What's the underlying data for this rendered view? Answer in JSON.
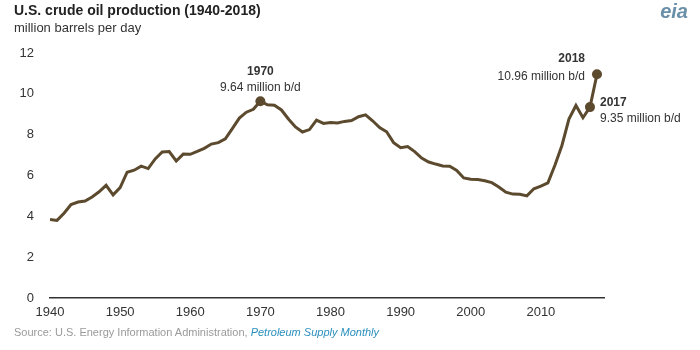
{
  "chart_data": {
    "type": "line",
    "title": "U.S. crude oil production (1940-2018)",
    "subtitle": "million barrels per day",
    "x": [
      1940,
      1941,
      1942,
      1943,
      1944,
      1945,
      1946,
      1947,
      1948,
      1949,
      1950,
      1951,
      1952,
      1953,
      1954,
      1955,
      1956,
      1957,
      1958,
      1959,
      1960,
      1961,
      1962,
      1963,
      1964,
      1965,
      1966,
      1967,
      1968,
      1969,
      1970,
      1971,
      1972,
      1973,
      1974,
      1975,
      1976,
      1977,
      1978,
      1979,
      1980,
      1981,
      1982,
      1983,
      1984,
      1985,
      1986,
      1987,
      1988,
      1989,
      1990,
      1991,
      1992,
      1993,
      1994,
      1995,
      1996,
      1997,
      1998,
      1999,
      2000,
      2001,
      2002,
      2003,
      2004,
      2005,
      2006,
      2007,
      2008,
      2009,
      2010,
      2011,
      2012,
      2013,
      2014,
      2015,
      2016,
      2017,
      2018
    ],
    "values": [
      3.85,
      3.8,
      4.15,
      4.58,
      4.7,
      4.75,
      4.95,
      5.2,
      5.52,
      5.05,
      5.41,
      6.16,
      6.26,
      6.46,
      6.34,
      6.81,
      7.15,
      7.17,
      6.71,
      7.05,
      7.04,
      7.18,
      7.33,
      7.54,
      7.61,
      7.8,
      8.3,
      8.81,
      9.1,
      9.24,
      9.64,
      9.46,
      9.44,
      9.21,
      8.77,
      8.38,
      8.13,
      8.25,
      8.71,
      8.55,
      8.6,
      8.57,
      8.65,
      8.69,
      8.88,
      8.97,
      8.68,
      8.35,
      8.14,
      7.61,
      7.36,
      7.42,
      7.17,
      6.85,
      6.66,
      6.56,
      6.47,
      6.45,
      6.25,
      5.88,
      5.82,
      5.8,
      5.74,
      5.65,
      5.44,
      5.18,
      5.09,
      5.08,
      5.0,
      5.35,
      5.48,
      5.64,
      6.5,
      7.47,
      8.76,
      9.43,
      8.83,
      9.35,
      10.96
    ],
    "color": "#5c4a2e",
    "xlim": [
      1940,
      2019
    ],
    "xticks": [
      1940,
      1950,
      1960,
      1970,
      1980,
      1990,
      2000,
      2010
    ],
    "ylim": [
      0,
      12
    ],
    "yticks": [
      0,
      2,
      4,
      6,
      8,
      10,
      12
    ],
    "grid": false,
    "annotations": [
      {
        "x": 1970,
        "y": 9.64,
        "label": "1970",
        "text": "9.64 million b/d"
      },
      {
        "x": 2018,
        "y": 10.96,
        "label": "2018",
        "text": "10.96 million b/d"
      },
      {
        "x": 2017,
        "y": 9.35,
        "label": "2017",
        "text": "9.35 million b/d"
      }
    ],
    "source": "Source: U.S. Energy Information Administration,",
    "source_publication": "Petroleum Supply Monthly",
    "logo": "eia"
  }
}
